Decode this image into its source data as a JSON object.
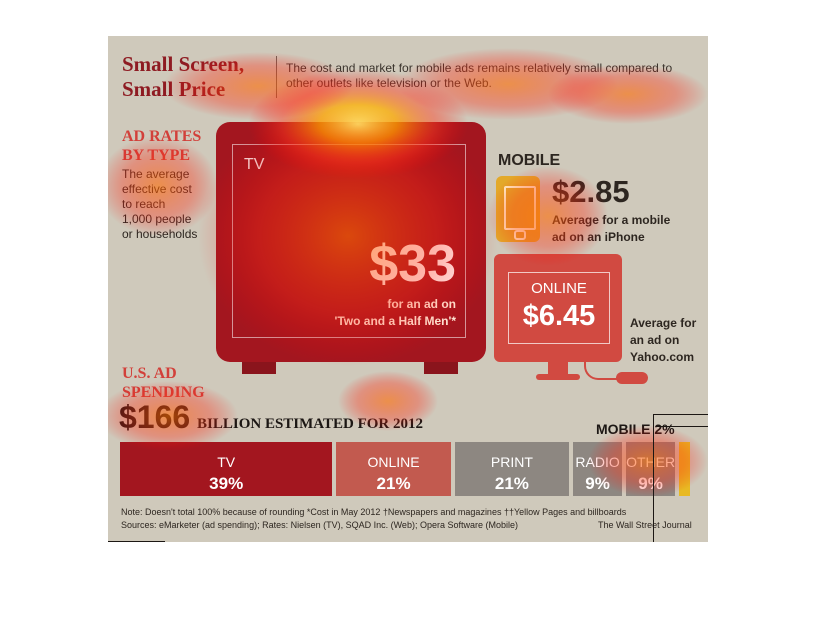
{
  "header": {
    "title_line1": "Small Screen,",
    "title_line2": "Small Price",
    "subtitle": "The cost and market for mobile ads remains relatively small compared to other outlets like television or the Web."
  },
  "ad_rates": {
    "heading_line1": "AD RATES",
    "heading_line2": "BY TYPE",
    "description": [
      "The average",
      "effective cost",
      "to reach",
      "1,000 people",
      "or households"
    ],
    "tv": {
      "label": "TV",
      "price": "$33",
      "caption_line1": "for an ad on",
      "caption_line2": "'Two and a Half Men'*"
    },
    "mobile": {
      "label": "MOBILE",
      "price": "$2.85",
      "caption_line1": "Average for a mobile",
      "caption_line2": "ad on an iPhone"
    },
    "online": {
      "label": "ONLINE",
      "price": "$6.45",
      "caption_line1": "Average for",
      "caption_line2": "an ad on",
      "caption_line3": "Yahoo.com"
    }
  },
  "spending": {
    "heading_line1": "U.S. AD",
    "heading_line2": "SPENDING",
    "big_value": "$166",
    "big_suffix": "BILLION ESTIMATED FOR 2012",
    "mobile_label": "MOBILE 2%"
  },
  "chart_data": [
    {
      "type": "bar",
      "title": "AD RATES BY TYPE",
      "categories": [
        "TV",
        "MOBILE",
        "ONLINE"
      ],
      "values": [
        33,
        2.85,
        6.45
      ],
      "ylabel": "",
      "labels": [
        "$33",
        "$2.85",
        "$6.45"
      ]
    },
    {
      "type": "bar",
      "title": "U.S. AD SPENDING",
      "subtitle": "$166 BILLION ESTIMATED FOR 2012",
      "orientation": "stacked-horizontal",
      "categories": [
        "TV",
        "ONLINE",
        "PRINT",
        "RADIO",
        "OTHER",
        "MOBILE"
      ],
      "values": [
        39,
        21,
        21,
        9,
        9,
        2
      ],
      "labels": [
        "39%",
        "21%",
        "21%",
        "9%",
        "9%",
        "2%"
      ],
      "label_suffixes": [
        "",
        "",
        "",
        "",
        "",
        ""
      ],
      "colors": [
        "#a3161f",
        "#c25a4f",
        "#8d8781",
        "#8d8781",
        "#8d8781",
        "#e8b923"
      ]
    }
  ],
  "footer": {
    "note_line1": "Note: Doesn't total 100% because of rounding   *Cost in May 2012   †Newspapers and magazines   ††Yellow Pages and billboards",
    "note_line2": "Sources: eMarketer (ad spending); Rates: Nielsen (TV), SQAD Inc. (Web); Opera Software (Mobile)",
    "credit": "The Wall Street Journal"
  },
  "colors": {
    "panel": "#cfc9bb",
    "tv_red": "#a3161f",
    "online_red": "#d14a41",
    "mobile_yellow": "#e3a92a",
    "heading_red": "#d2403a"
  }
}
